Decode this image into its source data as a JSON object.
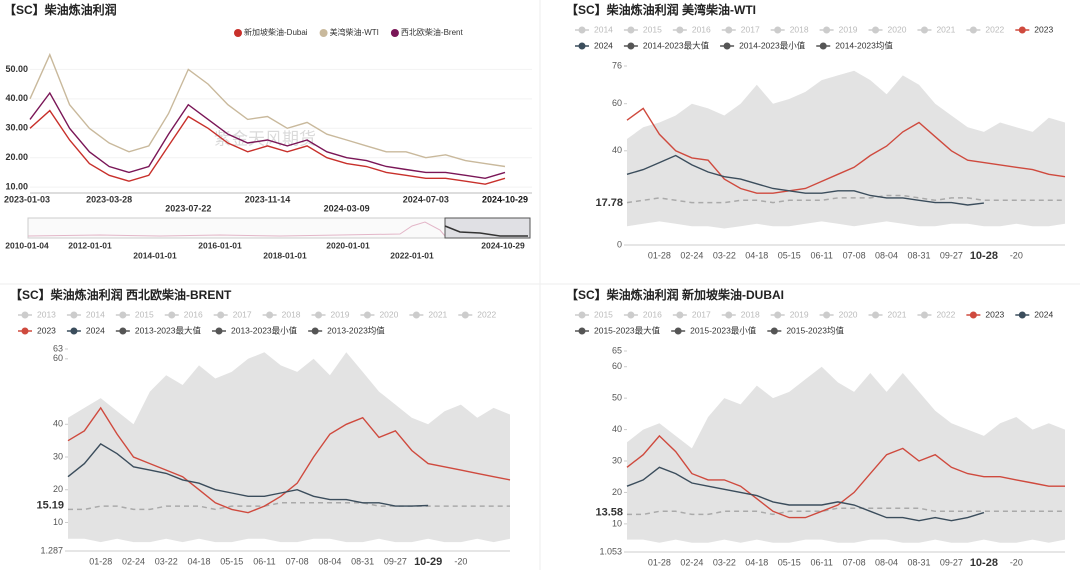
{
  "chart_data": [
    {
      "type": "line",
      "title": "【SC】柴油炼油利润",
      "categories": [
        "2023-01-03",
        null,
        null,
        null,
        "2023-03-28",
        null,
        null,
        null,
        "2023-07-22",
        null,
        null,
        null,
        "2023-11-14",
        null,
        null,
        null,
        "2024-03-09",
        null,
        null,
        null,
        "2024-07-03",
        null,
        null,
        null,
        "2024-10-29"
      ],
      "series": [
        {
          "name": "新加坡柴油-Dubai",
          "color": "#c8302b",
          "values": [
            30,
            36,
            26,
            18,
            14,
            12,
            14,
            24,
            34,
            30,
            25,
            22,
            24,
            22,
            24,
            20,
            18,
            17,
            15,
            14,
            13,
            13,
            12,
            11,
            13
          ]
        },
        {
          "name": "美湾柴油-WTI",
          "color": "#c9b99c",
          "values": [
            40,
            55,
            38,
            30,
            25,
            22,
            24,
            35,
            50,
            45,
            38,
            33,
            34,
            30,
            32,
            28,
            26,
            24,
            22,
            22,
            20,
            21,
            19,
            18,
            17
          ]
        },
        {
          "name": "西北欧柴油-Brent",
          "color": "#7a1657",
          "values": [
            33,
            42,
            30,
            22,
            17,
            15,
            17,
            28,
            38,
            33,
            28,
            25,
            26,
            24,
            26,
            22,
            20,
            19,
            17,
            16,
            15,
            15,
            14,
            13,
            15
          ]
        }
      ],
      "ylim": [
        8,
        60
      ],
      "yticks": [
        {
          "value": 10,
          "label": "10.00"
        },
        {
          "value": 20,
          "label": "20.00"
        },
        {
          "value": 30,
          "label": "30.00"
        },
        {
          "value": 40,
          "label": "40.00"
        },
        {
          "value": 50,
          "label": "50.00"
        }
      ],
      "navigator_labels": [
        "2010-01-04",
        "2012-01-01",
        "2014-01-01",
        "2016-01-01",
        "2018-01-01",
        "2020-01-01",
        "2022-01-01",
        "2024-10-29"
      ],
      "watermark": "紫金天风期货"
    },
    {
      "type": "seasonal",
      "title": "【SC】柴油炼油利润 美湾柴油-WTI",
      "hidden_series": [
        {
          "name": "2014",
          "color": "#cccccc"
        },
        {
          "name": "2015",
          "color": "#cccccc"
        },
        {
          "name": "2016",
          "color": "#cccccc"
        },
        {
          "name": "2017",
          "color": "#cccccc"
        },
        {
          "name": "2018",
          "color": "#cccccc"
        },
        {
          "name": "2019",
          "color": "#cccccc"
        },
        {
          "name": "2020",
          "color": "#cccccc"
        },
        {
          "name": "2021",
          "color": "#cccccc"
        },
        {
          "name": "2022",
          "color": "#cccccc"
        }
      ],
      "categories": [
        null,
        null,
        "01-28",
        null,
        "02-24",
        null,
        "03-22",
        null,
        "04-18",
        null,
        "05-15",
        null,
        "06-11",
        null,
        "07-08",
        null,
        "08-04",
        null,
        "08-31",
        null,
        "09-27",
        null,
        "10-28",
        null,
        "-20",
        null,
        null,
        null
      ],
      "series": [
        {
          "name": "2023",
          "color": "#cf4a3e",
          "role": "line",
          "values": [
            53,
            58,
            47,
            40,
            37,
            36,
            28,
            24,
            22,
            22,
            23,
            24,
            27,
            30,
            33,
            38,
            42,
            48,
            52,
            46,
            40,
            36,
            35,
            34,
            33,
            32,
            30,
            29
          ]
        },
        {
          "name": "2024",
          "color": "#3b4d5c",
          "role": "line",
          "values": [
            30,
            32,
            35,
            38,
            34,
            31,
            29,
            28,
            26,
            24,
            23,
            22,
            22,
            23,
            23,
            21,
            20,
            20,
            19,
            18,
            18,
            17,
            17.78,
            null,
            null,
            null,
            null,
            null
          ]
        },
        {
          "name": "2014-2023最大值",
          "color": "#555555",
          "role": "max",
          "values": [
            45,
            50,
            52,
            55,
            60,
            58,
            55,
            60,
            68,
            60,
            62,
            65,
            70,
            72,
            74,
            70,
            64,
            72,
            68,
            60,
            55,
            50,
            48,
            52,
            50,
            48,
            54,
            52
          ]
        },
        {
          "name": "2014-2023最小值",
          "color": "#555555",
          "role": "min",
          "values": [
            8,
            9,
            10,
            9,
            8,
            8,
            7,
            8,
            9,
            8,
            8,
            9,
            10,
            9,
            8,
            9,
            10,
            9,
            8,
            8,
            9,
            9,
            8,
            8,
            9,
            8,
            8,
            9
          ]
        },
        {
          "name": "2014-2023均值",
          "color": "#555555",
          "role": "avg",
          "values": [
            18,
            19,
            20,
            19,
            18,
            18,
            18,
            19,
            19,
            18,
            19,
            19,
            19,
            20,
            20,
            20,
            21,
            21,
            20,
            19,
            20,
            20,
            19,
            19,
            19,
            19,
            19,
            19
          ]
        }
      ],
      "band_color": "#e3e3e3",
      "avg_color": "#aaaaaa",
      "ylim": [
        0,
        76
      ],
      "yticks": [
        0,
        40,
        60,
        76
      ],
      "current_value": 17.78,
      "watermark": "紫金天风期货"
    },
    {
      "type": "seasonal",
      "title": "【SC】柴油炼油利润 西北欧柴油-BRENT",
      "hidden_series": [
        {
          "name": "2013",
          "color": "#cccccc"
        },
        {
          "name": "2014",
          "color": "#cccccc"
        },
        {
          "name": "2015",
          "color": "#cccccc"
        },
        {
          "name": "2016",
          "color": "#cccccc"
        },
        {
          "name": "2017",
          "color": "#cccccc"
        },
        {
          "name": "2018",
          "color": "#cccccc"
        },
        {
          "name": "2019",
          "color": "#cccccc"
        },
        {
          "name": "2020",
          "color": "#cccccc"
        },
        {
          "name": "2021",
          "color": "#cccccc"
        },
        {
          "name": "2022",
          "color": "#cccccc"
        }
      ],
      "categories": [
        null,
        null,
        "01-28",
        null,
        "02-24",
        null,
        "03-22",
        null,
        "04-18",
        null,
        "05-15",
        null,
        "06-11",
        null,
        "07-08",
        null,
        "08-04",
        null,
        "08-31",
        null,
        "09-27",
        null,
        "10-29",
        null,
        "-20",
        null,
        null,
        null
      ],
      "series": [
        {
          "name": "2023",
          "color": "#cf4a3e",
          "role": "line",
          "values": [
            35,
            38,
            45,
            37,
            30,
            28,
            26,
            24,
            20,
            16,
            14,
            13,
            15,
            18,
            22,
            30,
            37,
            40,
            42,
            36,
            38,
            32,
            28,
            27,
            26,
            25,
            24,
            23
          ]
        },
        {
          "name": "2024",
          "color": "#3b4d5c",
          "role": "line",
          "values": [
            24,
            28,
            34,
            31,
            27,
            26,
            25,
            23,
            22,
            20,
            19,
            18,
            18,
            19,
            20,
            18,
            17,
            17,
            16,
            16,
            15,
            15,
            15.19,
            null,
            null,
            null,
            null,
            null
          ]
        },
        {
          "name": "2013-2023最大值",
          "color": "#555555",
          "role": "max",
          "values": [
            42,
            45,
            48,
            44,
            40,
            50,
            55,
            52,
            58,
            54,
            56,
            60,
            62,
            58,
            56,
            60,
            55,
            62,
            56,
            50,
            46,
            42,
            40,
            44,
            46,
            42,
            45,
            43
          ]
        },
        {
          "name": "2013-2023最小值",
          "color": "#555555",
          "role": "min",
          "values": [
            5,
            5,
            4,
            5,
            4,
            4,
            5,
            4,
            5,
            4,
            4,
            5,
            5,
            4,
            4,
            5,
            5,
            4,
            4,
            5,
            4,
            4,
            5,
            4,
            4,
            5,
            4,
            5
          ]
        },
        {
          "name": "2013-2023均值",
          "color": "#555555",
          "role": "avg",
          "values": [
            14,
            14,
            15,
            15,
            14,
            14,
            15,
            15,
            15,
            14,
            15,
            15,
            15,
            16,
            16,
            16,
            16,
            16,
            16,
            15,
            15,
            15,
            15,
            15,
            15,
            15,
            15,
            15
          ]
        }
      ],
      "band_color": "#e3e3e3",
      "avg_color": "#aaaaaa",
      "ylim": [
        1.287,
        63
      ],
      "yticks": [
        1.287,
        10,
        20,
        30,
        40,
        60,
        63
      ],
      "current_value": 15.19,
      "watermark": "紫金天风期货"
    },
    {
      "type": "seasonal",
      "title": "【SC】柴油炼油利润 新加坡柴油-DUBAI",
      "hidden_series": [
        {
          "name": "2015",
          "color": "#cccccc"
        },
        {
          "name": "2016",
          "color": "#cccccc"
        },
        {
          "name": "2017",
          "color": "#cccccc"
        },
        {
          "name": "2018",
          "color": "#cccccc"
        },
        {
          "name": "2019",
          "color": "#cccccc"
        },
        {
          "name": "2020",
          "color": "#cccccc"
        },
        {
          "name": "2021",
          "color": "#cccccc"
        },
        {
          "name": "2022",
          "color": "#cccccc"
        }
      ],
      "categories": [
        null,
        null,
        "01-28",
        null,
        "02-24",
        null,
        "03-22",
        null,
        "04-18",
        null,
        "05-15",
        null,
        "06-11",
        null,
        "07-08",
        null,
        "08-04",
        null,
        "08-31",
        null,
        "09-27",
        null,
        "10-28",
        null,
        "-20",
        null,
        null,
        null
      ],
      "series": [
        {
          "name": "2023",
          "color": "#cf4a3e",
          "role": "line",
          "values": [
            28,
            32,
            38,
            33,
            26,
            24,
            24,
            22,
            18,
            14,
            12,
            12,
            14,
            16,
            20,
            26,
            32,
            34,
            30,
            32,
            28,
            26,
            25,
            25,
            24,
            23,
            22,
            22
          ]
        },
        {
          "name": "2024",
          "color": "#3b4d5c",
          "role": "line",
          "values": [
            22,
            24,
            28,
            26,
            23,
            22,
            21,
            20,
            19,
            17,
            16,
            16,
            16,
            17,
            16,
            14,
            12,
            12,
            11,
            12,
            11,
            12,
            13.58,
            null,
            null,
            null,
            null,
            null
          ]
        },
        {
          "name": "2015-2023最大值",
          "color": "#555555",
          "role": "max",
          "values": [
            36,
            40,
            42,
            38,
            34,
            44,
            50,
            48,
            54,
            50,
            52,
            56,
            60,
            55,
            52,
            58,
            52,
            58,
            52,
            46,
            42,
            40,
            38,
            42,
            44,
            40,
            42,
            40
          ]
        },
        {
          "name": "2015-2023最小值",
          "color": "#555555",
          "role": "min",
          "values": [
            5,
            5,
            4,
            5,
            4,
            4,
            5,
            4,
            5,
            4,
            4,
            5,
            5,
            4,
            4,
            5,
            5,
            4,
            4,
            5,
            4,
            4,
            5,
            4,
            4,
            5,
            4,
            5
          ]
        },
        {
          "name": "2015-2023均值",
          "color": "#555555",
          "role": "avg",
          "values": [
            13,
            13,
            14,
            14,
            13,
            13,
            14,
            14,
            14,
            13,
            14,
            14,
            14,
            15,
            15,
            15,
            15,
            15,
            15,
            14,
            14,
            14,
            14,
            14,
            14,
            14,
            14,
            14
          ]
        }
      ],
      "band_color": "#e3e3e3",
      "avg_color": "#aaaaaa",
      "ylim": [
        1.053,
        65
      ],
      "yticks": [
        1.053,
        10,
        20,
        30,
        40,
        50,
        60,
        65
      ],
      "current_value": 13.58,
      "watermark": "紫金天风期货"
    }
  ]
}
